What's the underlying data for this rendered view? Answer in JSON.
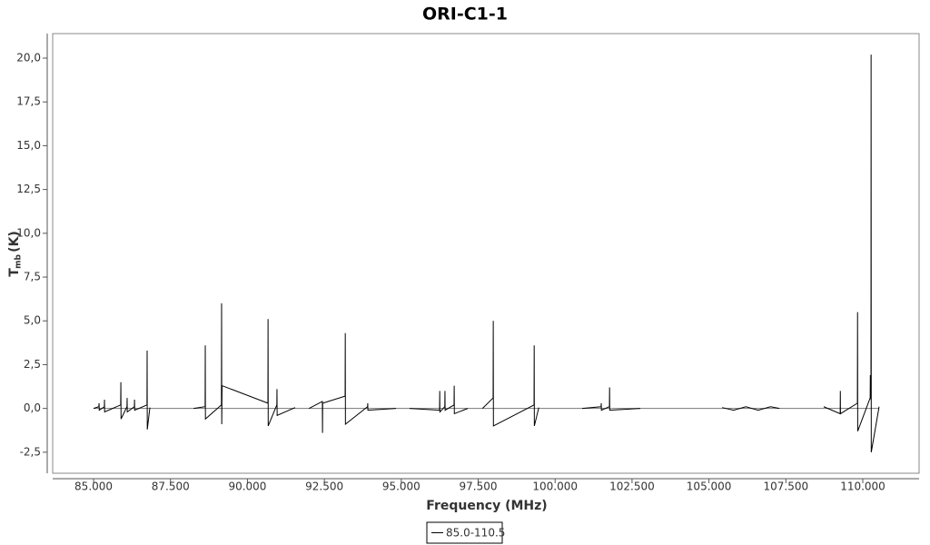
{
  "chart_data": {
    "type": "line",
    "title": "ORI-C1-1",
    "x_label": "Frequency (MHz)",
    "y_label": {
      "symbol": "T",
      "subscript": "mb",
      "unit": "(K)"
    },
    "x": [
      85000,
      85170,
      85177,
      85184,
      85350,
      85354,
      85358,
      85880,
      85886,
      85892,
      86085,
      86090,
      86095,
      86325,
      86330,
      86335,
      86735,
      86740,
      86745,
      86830,
      87540,
      88250,
      88625,
      88630,
      88635,
      89155,
      89160,
      89165,
      89175,
      90665,
      90670,
      90675,
      90955,
      90960,
      90965,
      91550,
      91775,
      92000,
      92435,
      92440,
      92445,
      93175,
      93180,
      93185,
      93905,
      93910,
      93915,
      94830,
      95050,
      95270,
      96245,
      96250,
      96255,
      96415,
      96420,
      96425,
      96715,
      96720,
      96725,
      97160,
      97400,
      97640,
      97985,
      97990,
      97995,
      99315,
      99320,
      99325,
      99470,
      100175,
      100880,
      101495,
      101500,
      101505,
      101765,
      101770,
      101775,
      102770,
      104100,
      105430,
      105800,
      106200,
      106600,
      107000,
      107290,
      108010,
      108730,
      109265,
      109270,
      109275,
      109825,
      109830,
      109835,
      110240,
      110245,
      110265,
      110270,
      110275,
      110530
    ],
    "series": [
      {
        "name": "85.0-110.5",
        "color": "#000000",
        "values": [
          0,
          0.1,
          0.3,
          -0.1,
          0.1,
          0.5,
          -0.2,
          0.2,
          1.5,
          -0.6,
          0.1,
          0.6,
          -0.2,
          0.1,
          0.5,
          -0.1,
          0.2,
          3.3,
          -1.2,
          0.05,
          null,
          0,
          0.1,
          3.6,
          -0.6,
          0.2,
          6.0,
          -0.9,
          1.3,
          0.3,
          5.1,
          -1.0,
          0.2,
          1.1,
          -0.4,
          0.05,
          null,
          0,
          0.4,
          -1.4,
          0.3,
          0.7,
          4.3,
          -0.9,
          0.1,
          0.3,
          -0.1,
          0,
          null,
          0,
          -0.1,
          1.0,
          -0.2,
          0.1,
          1.0,
          -0.1,
          0.2,
          1.3,
          -0.3,
          0,
          null,
          0,
          0.6,
          5.0,
          -1.0,
          0.2,
          3.6,
          -1.0,
          0.05,
          null,
          0,
          0.1,
          0.3,
          -0.1,
          0.1,
          1.2,
          -0.1,
          0,
          null,
          0.05,
          -0.1,
          0.1,
          -0.1,
          0.1,
          0,
          null,
          0.1,
          -0.3,
          1.0,
          -0.3,
          0.3,
          5.5,
          -1.3,
          0.6,
          1.9,
          0.5,
          20.2,
          -2.5,
          0.1
        ]
      }
    ],
    "xlim": [
      83670,
      111830
    ],
    "ylim": [
      -3.7,
      21.4
    ],
    "xticks": [
      {
        "value": 85000,
        "label": "85.000"
      },
      {
        "value": 87500,
        "label": "87.500"
      },
      {
        "value": 90000,
        "label": "90.000"
      },
      {
        "value": 92500,
        "label": "92.500"
      },
      {
        "value": 95000,
        "label": "95.000"
      },
      {
        "value": 97500,
        "label": "97.500"
      },
      {
        "value": 100000,
        "label": "100.000"
      },
      {
        "value": 102500,
        "label": "102.500"
      },
      {
        "value": 105000,
        "label": "105.000"
      },
      {
        "value": 107500,
        "label": "107.500"
      },
      {
        "value": 110000,
        "label": "110.000"
      }
    ],
    "yticks": [
      {
        "value": -2.5,
        "label": "-2,5"
      },
      {
        "value": 0,
        "label": "0,0"
      },
      {
        "value": 2.5,
        "label": "2,5"
      },
      {
        "value": 5,
        "label": "5,0"
      },
      {
        "value": 7.5,
        "label": "7,5"
      },
      {
        "value": 10,
        "label": "10,0"
      },
      {
        "value": 12.5,
        "label": "12,5"
      },
      {
        "value": 15,
        "label": "15,0"
      },
      {
        "value": 17.5,
        "label": "17,5"
      },
      {
        "value": 20,
        "label": "20,0"
      }
    ],
    "zero_line": true
  }
}
